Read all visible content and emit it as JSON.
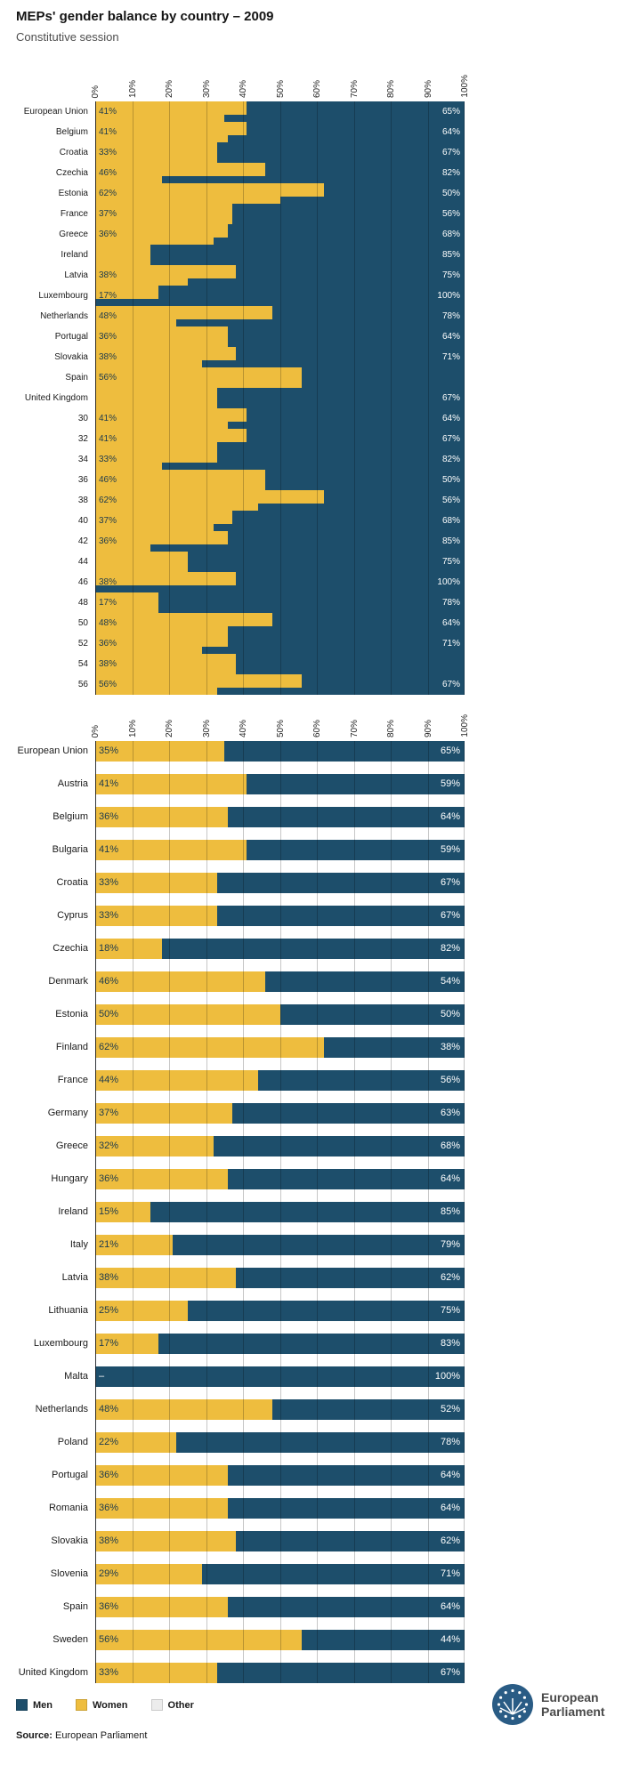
{
  "header": {
    "title": "MEPs' gender balance by country – 2009",
    "subtitle": "Constitutive session"
  },
  "colors": {
    "men": "#1d4e6b",
    "women": "#eebd3e",
    "other": "#ececec",
    "value_on_women": "#1d3a4d",
    "value_on_men": "#ffffff"
  },
  "chart_data": [
    {
      "id": "constitutive-session-detail",
      "type": "bar",
      "orientation": "horizontal",
      "stacked": true,
      "glitched": true,
      "xlim": [
        0,
        100
      ],
      "x_ticks": [
        "0%",
        "10%",
        "20%",
        "30%",
        "40%",
        "50%",
        "60%",
        "70%",
        "80%",
        "90%",
        "100%"
      ],
      "rows": [
        {
          "label": "European Union",
          "women": 41,
          "men": 65
        },
        {
          "label": "Belgium",
          "women": 41,
          "men": 64
        },
        {
          "label": "Croatia",
          "women": 33,
          "men": 67
        },
        {
          "label": "Czechia",
          "women": 46,
          "men": 82
        },
        {
          "label": "Estonia",
          "women": 62,
          "men": 50
        },
        {
          "label": "France",
          "women": 37,
          "men": 56
        },
        {
          "label": "Greece",
          "women": 36,
          "men": 68
        },
        {
          "label": "Ireland",
          "women": null,
          "men": 85
        },
        {
          "label": "Latvia",
          "women": 38,
          "men": 75
        },
        {
          "label": "Luxembourg",
          "women": 17,
          "men": 100
        },
        {
          "label": "Netherlands",
          "women": 48,
          "men": 78
        },
        {
          "label": "Portugal",
          "women": 36,
          "men": 64
        },
        {
          "label": "Slovakia",
          "women": 38,
          "men": 71
        },
        {
          "label": "Spain",
          "women": 56,
          "men": null
        },
        {
          "label": "United Kingdom",
          "women": null,
          "men": 67
        },
        {
          "label": "30",
          "women": 41,
          "men": 64
        },
        {
          "label": "32",
          "women": 41,
          "men": 67
        },
        {
          "label": "34",
          "women": 33,
          "men": 82
        },
        {
          "label": "36",
          "women": 46,
          "men": 50
        },
        {
          "label": "38",
          "women": 62,
          "men": 56
        },
        {
          "label": "40",
          "women": 37,
          "men": 68
        },
        {
          "label": "42",
          "women": 36,
          "men": 85
        },
        {
          "label": "44",
          "women": null,
          "men": 75
        },
        {
          "label": "46",
          "women": 38,
          "men": 100
        },
        {
          "label": "48",
          "women": 17,
          "men": 78
        },
        {
          "label": "50",
          "women": 48,
          "men": 64
        },
        {
          "label": "52",
          "women": 36,
          "men": 71
        },
        {
          "label": "54",
          "women": 38,
          "men": null
        },
        {
          "label": "56",
          "women": 56,
          "men": 67
        }
      ]
    },
    {
      "id": "constitutive-session-by-country",
      "type": "bar",
      "orientation": "horizontal",
      "stacked": true,
      "glitched": false,
      "xlim": [
        0,
        100
      ],
      "x_ticks": [
        "0%",
        "10%",
        "20%",
        "30%",
        "40%",
        "50%",
        "60%",
        "70%",
        "80%",
        "90%",
        "100%"
      ],
      "rows": [
        {
          "label": "European Union",
          "women": 35,
          "men": 65
        },
        {
          "label": "Austria",
          "women": 41,
          "men": 59
        },
        {
          "label": "Belgium",
          "women": 36,
          "men": 64
        },
        {
          "label": "Bulgaria",
          "women": 41,
          "men": 59
        },
        {
          "label": "Croatia",
          "women": 33,
          "men": 67
        },
        {
          "label": "Cyprus",
          "women": 33,
          "men": 67
        },
        {
          "label": "Czechia",
          "women": 18,
          "men": 82
        },
        {
          "label": "Denmark",
          "women": 46,
          "men": 54
        },
        {
          "label": "Estonia",
          "women": 50,
          "men": 50
        },
        {
          "label": "Finland",
          "women": 62,
          "men": 38
        },
        {
          "label": "France",
          "women": 44,
          "men": 56
        },
        {
          "label": "Germany",
          "women": 37,
          "men": 63
        },
        {
          "label": "Greece",
          "women": 32,
          "men": 68
        },
        {
          "label": "Hungary",
          "women": 36,
          "men": 64
        },
        {
          "label": "Ireland",
          "women": 15,
          "men": 85
        },
        {
          "label": "Italy",
          "women": 21,
          "men": 79
        },
        {
          "label": "Latvia",
          "women": 38,
          "men": 62
        },
        {
          "label": "Lithuania",
          "women": 25,
          "men": 75
        },
        {
          "label": "Luxembourg",
          "women": 17,
          "men": 83
        },
        {
          "label": "Malta",
          "women": null,
          "women_display": "–",
          "men": 100
        },
        {
          "label": "Netherlands",
          "women": 48,
          "men": 52
        },
        {
          "label": "Poland",
          "women": 22,
          "men": 78
        },
        {
          "label": "Portugal",
          "women": 36,
          "men": 64
        },
        {
          "label": "Romania",
          "women": 36,
          "men": 64
        },
        {
          "label": "Slovakia",
          "women": 38,
          "men": 62
        },
        {
          "label": "Slovenia",
          "women": 29,
          "men": 71
        },
        {
          "label": "Spain",
          "women": 36,
          "men": 64
        },
        {
          "label": "Sweden",
          "women": 56,
          "men": 44
        },
        {
          "label": "United Kingdom",
          "women": 33,
          "men": 67
        }
      ]
    }
  ],
  "legend": {
    "items": [
      {
        "label": "Men",
        "color": "#1d4e6b"
      },
      {
        "label": "Women",
        "color": "#eebd3e"
      },
      {
        "label": "Other",
        "color": "#ececec"
      }
    ]
  },
  "logo": {
    "line1": "European",
    "line2": "Parliament"
  },
  "footer": {
    "source_label": "Source:",
    "source_value": "European Parliament"
  }
}
